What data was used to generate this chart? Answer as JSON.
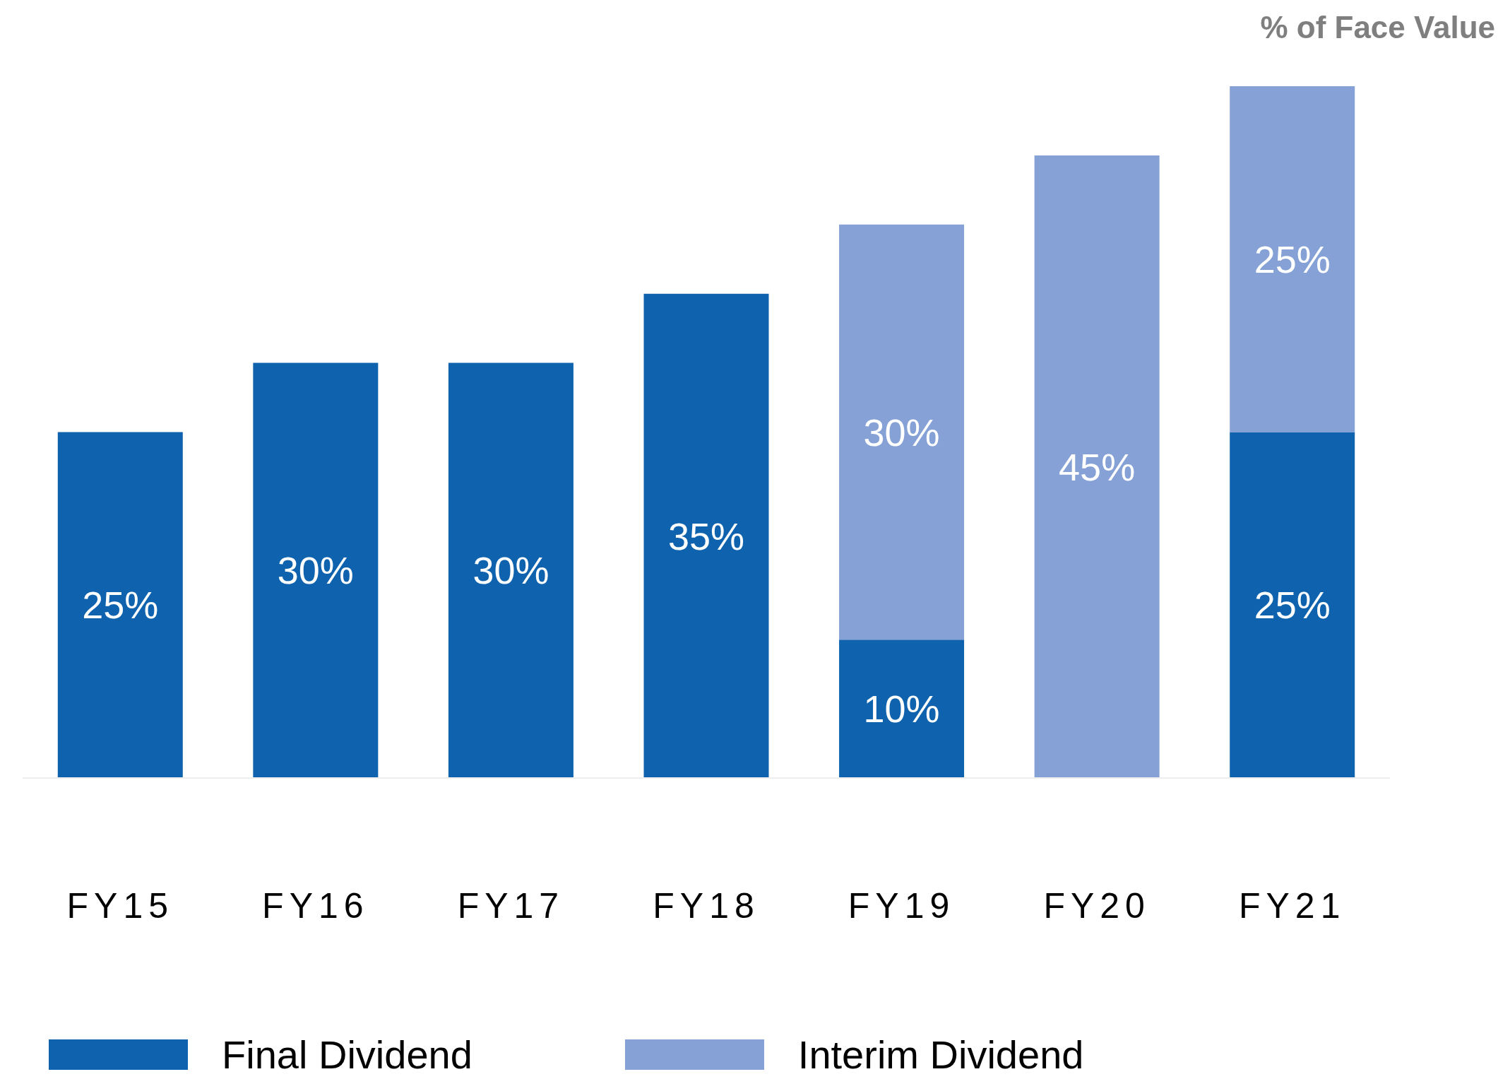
{
  "chart_data": {
    "type": "bar",
    "stacked": true,
    "ylabel": "% of Face Value",
    "categories": [
      "FY15",
      "FY16",
      "FY17",
      "FY18",
      "FY19",
      "FY20",
      "FY21"
    ],
    "series": [
      {
        "name": "Final Dividend",
        "color": "#0e62ae",
        "values": [
          25,
          30,
          30,
          35,
          10,
          null,
          25
        ],
        "value_labels": [
          "25%",
          "30%",
          "30%",
          "35%",
          "10%",
          null,
          "25%"
        ]
      },
      {
        "name": "Interim Dividend",
        "color": "#86a1d6",
        "values": [
          null,
          null,
          null,
          null,
          30,
          45,
          25
        ],
        "value_labels": [
          null,
          null,
          null,
          null,
          "30%",
          "45%",
          "25%"
        ]
      }
    ],
    "ylim": [
      0,
      50
    ],
    "tick_labels": "x",
    "legend": "bottom"
  }
}
